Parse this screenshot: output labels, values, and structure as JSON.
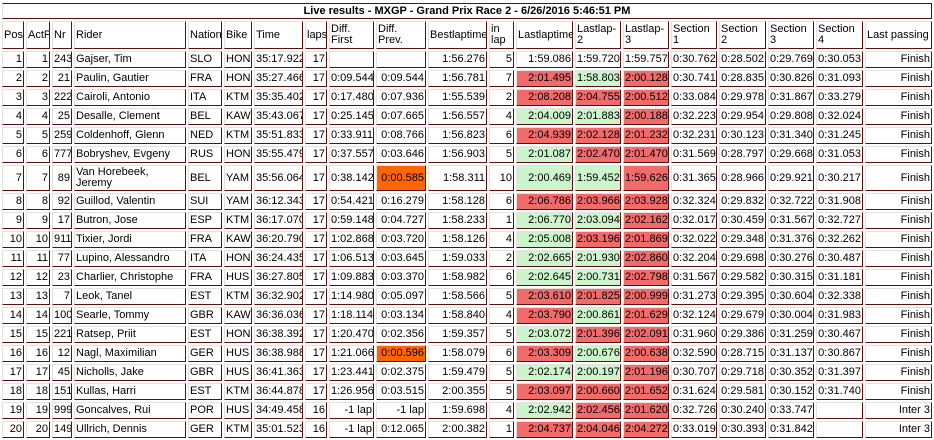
{
  "title": "Live results - MXGP - Grand Prix Race 2 - 6/26/2016 5:46:51 PM",
  "columns": [
    "Pos",
    "ActP",
    "Nr",
    "Rider",
    "Nation",
    "Bike",
    "Time",
    "laps",
    "Diff. First",
    "Diff. Prev.",
    "Bestlaptime",
    "in lap",
    "Lastlaptime",
    "Lastlap-2",
    "Lastlap-3",
    "Section 1",
    "Section 2",
    "Section 3",
    "Section 4",
    "Last passing"
  ],
  "colors": {
    "slower": "#f26b6b",
    "faster": "#ccf5cc",
    "gap_alert": "#ff6600"
  },
  "rows": [
    {
      "pos": "1",
      "actp": "1",
      "nr": "243",
      "rider": "Gajser, Tim",
      "nation": "SLO",
      "bike": "HON",
      "time": "35:17.922",
      "laps": "17",
      "diff_first": "",
      "diff_prev": "",
      "best": "1:56.276",
      "in_lap": "5",
      "last": "1:59.086",
      "last2": "1:59.720",
      "last3": "1:59.757",
      "s1": "0:30.762",
      "s2": "0:28.502",
      "s3": "0:29.769",
      "s4": "0:30.053",
      "passing": "Finish",
      "lap_colors": [
        "",
        "",
        ""
      ],
      "gap_alert": false
    },
    {
      "pos": "2",
      "actp": "2",
      "nr": "21",
      "rider": "Paulin, Gautier",
      "nation": "FRA",
      "bike": "HON",
      "time": "35:27.466",
      "laps": "17",
      "diff_first": "0:09.544",
      "diff_prev": "0:09.544",
      "best": "1:56.781",
      "in_lap": "7",
      "last": "2:01.495",
      "last2": "1:58.803",
      "last3": "2:00.128",
      "s1": "0:30.741",
      "s2": "0:28.835",
      "s3": "0:30.826",
      "s4": "0:31.093",
      "passing": "Finish",
      "lap_colors": [
        "r",
        "g",
        "r"
      ],
      "gap_alert": false
    },
    {
      "pos": "3",
      "actp": "3",
      "nr": "222",
      "rider": "Cairoli, Antonio",
      "nation": "ITA",
      "bike": "KTM",
      "time": "35:35.402",
      "laps": "17",
      "diff_first": "0:17.480",
      "diff_prev": "0:07.936",
      "best": "1:55.539",
      "in_lap": "2",
      "last": "2:08.208",
      "last2": "2:04.755",
      "last3": "2:00.512",
      "s1": "0:33.084",
      "s2": "0:29.978",
      "s3": "0:31.867",
      "s4": "0:33.279",
      "passing": "Finish",
      "lap_colors": [
        "r",
        "r",
        "r"
      ],
      "gap_alert": false
    },
    {
      "pos": "4",
      "actp": "4",
      "nr": "25",
      "rider": "Desalle, Clement",
      "nation": "BEL",
      "bike": "KAW",
      "time": "35:43.067",
      "laps": "17",
      "diff_first": "0:25.145",
      "diff_prev": "0:07.665",
      "best": "1:56.557",
      "in_lap": "4",
      "last": "2:04.009",
      "last2": "2:01.883",
      "last3": "2:00.188",
      "s1": "0:32.223",
      "s2": "0:29.954",
      "s3": "0:29.808",
      "s4": "0:32.024",
      "passing": "Finish",
      "lap_colors": [
        "g",
        "g",
        "r"
      ],
      "gap_alert": false
    },
    {
      "pos": "5",
      "actp": "5",
      "nr": "259",
      "rider": "Coldenhoff, Glenn",
      "nation": "NED",
      "bike": "KTM",
      "time": "35:51.833",
      "laps": "17",
      "diff_first": "0:33.911",
      "diff_prev": "0:08.766",
      "best": "1:56.823",
      "in_lap": "6",
      "last": "2:04.939",
      "last2": "2:02.128",
      "last3": "2:01.232",
      "s1": "0:32.231",
      "s2": "0:30.123",
      "s3": "0:31.340",
      "s4": "0:31.245",
      "passing": "Finish",
      "lap_colors": [
        "r",
        "r",
        "r"
      ],
      "gap_alert": false
    },
    {
      "pos": "6",
      "actp": "6",
      "nr": "777",
      "rider": "Bobryshev, Evgeny",
      "nation": "RUS",
      "bike": "HON",
      "time": "35:55.479",
      "laps": "17",
      "diff_first": "0:37.557",
      "diff_prev": "0:03.646",
      "best": "1:56.903",
      "in_lap": "5",
      "last": "2:01.087",
      "last2": "2:02.470",
      "last3": "2:01.470",
      "s1": "0:31.569",
      "s2": "0:28.797",
      "s3": "0:29.668",
      "s4": "0:31.053",
      "passing": "Finish",
      "lap_colors": [
        "g",
        "r",
        "r"
      ],
      "gap_alert": false
    },
    {
      "pos": "7",
      "actp": "7",
      "nr": "89",
      "rider": "Van Horebeek, Jeremy",
      "nation": "BEL",
      "bike": "YAM",
      "time": "35:56.064",
      "laps": "17",
      "diff_first": "0:38.142",
      "diff_prev": "0:00.585",
      "best": "1:58.311",
      "in_lap": "10",
      "last": "2:00.469",
      "last2": "1:59.452",
      "last3": "1:59.626",
      "s1": "0:31.365",
      "s2": "0:28.966",
      "s3": "0:29.921",
      "s4": "0:30.217",
      "passing": "Finish",
      "lap_colors": [
        "g",
        "g",
        "r"
      ],
      "gap_alert": true
    },
    {
      "pos": "8",
      "actp": "8",
      "nr": "92",
      "rider": "Guillod, Valentin",
      "nation": "SUI",
      "bike": "YAM",
      "time": "36:12.343",
      "laps": "17",
      "diff_first": "0:54.421",
      "diff_prev": "0:16.279",
      "best": "1:58.128",
      "in_lap": "6",
      "last": "2:06.786",
      "last2": "2:03.966",
      "last3": "2:03.928",
      "s1": "0:32.324",
      "s2": "0:29.832",
      "s3": "0:32.722",
      "s4": "0:31.908",
      "passing": "Finish",
      "lap_colors": [
        "r",
        "r",
        "r"
      ],
      "gap_alert": false
    },
    {
      "pos": "9",
      "actp": "9",
      "nr": "17",
      "rider": "Butron, Jose",
      "nation": "ESP",
      "bike": "KTM",
      "time": "36:17.070",
      "laps": "17",
      "diff_first": "0:59.148",
      "diff_prev": "0:04.727",
      "best": "1:58.233",
      "in_lap": "1",
      "last": "2:06.770",
      "last2": "2:03.094",
      "last3": "2:02.162",
      "s1": "0:32.017",
      "s2": "0:30.459",
      "s3": "0:31.567",
      "s4": "0:32.727",
      "passing": "Finish",
      "lap_colors": [
        "g",
        "g",
        "r"
      ],
      "gap_alert": false
    },
    {
      "pos": "10",
      "actp": "10",
      "nr": "911",
      "rider": "Tixier, Jordi",
      "nation": "FRA",
      "bike": "KAW",
      "time": "36:20.790",
      "laps": "17",
      "diff_first": "1:02.868",
      "diff_prev": "0:03.720",
      "best": "1:58.126",
      "in_lap": "4",
      "last": "2:05.008",
      "last2": "2:03.196",
      "last3": "2:01.869",
      "s1": "0:32.022",
      "s2": "0:29.348",
      "s3": "0:31.376",
      "s4": "0:32.262",
      "passing": "Finish",
      "lap_colors": [
        "g",
        "r",
        "r"
      ],
      "gap_alert": false
    },
    {
      "pos": "11",
      "actp": "11",
      "nr": "77",
      "rider": "Lupino, Alessandro",
      "nation": "ITA",
      "bike": "HON",
      "time": "36:24.435",
      "laps": "17",
      "diff_first": "1:06.513",
      "diff_prev": "0:03.645",
      "best": "1:59.033",
      "in_lap": "2",
      "last": "2:02.665",
      "last2": "2:01.930",
      "last3": "2:02.860",
      "s1": "0:32.204",
      "s2": "0:29.698",
      "s3": "0:30.276",
      "s4": "0:30.487",
      "passing": "Finish",
      "lap_colors": [
        "g",
        "g",
        "r"
      ],
      "gap_alert": false
    },
    {
      "pos": "12",
      "actp": "12",
      "nr": "23",
      "rider": "Charlier, Christophe",
      "nation": "FRA",
      "bike": "HUS",
      "time": "36:27.805",
      "laps": "17",
      "diff_first": "1:09.883",
      "diff_prev": "0:03.370",
      "best": "1:58.982",
      "in_lap": "6",
      "last": "2:02.645",
      "last2": "2:00.731",
      "last3": "2:02.798",
      "s1": "0:31.567",
      "s2": "0:29.582",
      "s3": "0:30.315",
      "s4": "0:31.181",
      "passing": "Finish",
      "lap_colors": [
        "g",
        "g",
        "r"
      ],
      "gap_alert": false
    },
    {
      "pos": "13",
      "actp": "13",
      "nr": "7",
      "rider": "Leok, Tanel",
      "nation": "EST",
      "bike": "KTM",
      "time": "36:32.902",
      "laps": "17",
      "diff_first": "1:14.980",
      "diff_prev": "0:05.097",
      "best": "1:58.566",
      "in_lap": "5",
      "last": "2:03.610",
      "last2": "2:01.825",
      "last3": "2:00.999",
      "s1": "0:31.273",
      "s2": "0:29.395",
      "s3": "0:30.604",
      "s4": "0:32.338",
      "passing": "Finish",
      "lap_colors": [
        "r",
        "r",
        "r"
      ],
      "gap_alert": false
    },
    {
      "pos": "14",
      "actp": "14",
      "nr": "100",
      "rider": "Searle, Tommy",
      "nation": "GBR",
      "bike": "KAW",
      "time": "36:36.036",
      "laps": "17",
      "diff_first": "1:18.114",
      "diff_prev": "0:03.134",
      "best": "1:58.840",
      "in_lap": "4",
      "last": "2:03.790",
      "last2": "2:00.861",
      "last3": "2:01.629",
      "s1": "0:32.124",
      "s2": "0:29.679",
      "s3": "0:30.004",
      "s4": "0:31.983",
      "passing": "Finish",
      "lap_colors": [
        "r",
        "g",
        "r"
      ],
      "gap_alert": false
    },
    {
      "pos": "15",
      "actp": "15",
      "nr": "221",
      "rider": "Ratsep, Priit",
      "nation": "EST",
      "bike": "HON",
      "time": "36:38.392",
      "laps": "17",
      "diff_first": "1:20.470",
      "diff_prev": "0:02.356",
      "best": "1:59.357",
      "in_lap": "5",
      "last": "2:03.072",
      "last2": "2:01.396",
      "last3": "2:02.091",
      "s1": "0:31.960",
      "s2": "0:29.386",
      "s3": "0:31.259",
      "s4": "0:30.467",
      "passing": "Finish",
      "lap_colors": [
        "g",
        "r",
        "r"
      ],
      "gap_alert": false
    },
    {
      "pos": "16",
      "actp": "16",
      "nr": "12",
      "rider": "Nagl, Maximilian",
      "nation": "GER",
      "bike": "HUS",
      "time": "36:38.988",
      "laps": "17",
      "diff_first": "1:21.066",
      "diff_prev": "0:00.596",
      "best": "1:58.079",
      "in_lap": "6",
      "last": "2:03.309",
      "last2": "2:00.676",
      "last3": "2:00.638",
      "s1": "0:32.590",
      "s2": "0:28.715",
      "s3": "0:31.137",
      "s4": "0:30.867",
      "passing": "Finish",
      "lap_colors": [
        "r",
        "g",
        "r"
      ],
      "gap_alert": true
    },
    {
      "pos": "17",
      "actp": "17",
      "nr": "45",
      "rider": "Nicholls, Jake",
      "nation": "GBR",
      "bike": "HUS",
      "time": "36:41.363",
      "laps": "17",
      "diff_first": "1:23.441",
      "diff_prev": "0:02.375",
      "best": "1:59.479",
      "in_lap": "5",
      "last": "2:02.174",
      "last2": "2:00.197",
      "last3": "2:01.196",
      "s1": "0:30.707",
      "s2": "0:29.718",
      "s3": "0:30.352",
      "s4": "0:31.397",
      "passing": "Finish",
      "lap_colors": [
        "g",
        "g",
        "r"
      ],
      "gap_alert": false
    },
    {
      "pos": "18",
      "actp": "18",
      "nr": "151",
      "rider": "Kullas, Harri",
      "nation": "EST",
      "bike": "KTM",
      "time": "36:44.878",
      "laps": "17",
      "diff_first": "1:26.956",
      "diff_prev": "0:03.515",
      "best": "2:00.355",
      "in_lap": "5",
      "last": "2:03.097",
      "last2": "2:00.660",
      "last3": "2:01.652",
      "s1": "0:31.624",
      "s2": "0:29.581",
      "s3": "0:30.152",
      "s4": "0:31.740",
      "passing": "Finish",
      "lap_colors": [
        "r",
        "r",
        "r"
      ],
      "gap_alert": false
    },
    {
      "pos": "19",
      "actp": "19",
      "nr": "999",
      "rider": "Goncalves, Rui",
      "nation": "POR",
      "bike": "HUS",
      "time": "34:49.458",
      "laps": "16",
      "diff_first": "-1 lap",
      "diff_prev": "-1 lap",
      "best": "1:59.698",
      "in_lap": "4",
      "last": "2:02.942",
      "last2": "2:02.456",
      "last3": "2:01.620",
      "s1": "0:32.726",
      "s2": "0:30.240",
      "s3": "0:33.747",
      "s4": "",
      "passing": "Inter 3",
      "lap_colors": [
        "g",
        "r",
        "r"
      ],
      "gap_alert": false
    },
    {
      "pos": "20",
      "actp": "20",
      "nr": "149",
      "rider": "Ullrich, Dennis",
      "nation": "GER",
      "bike": "KTM",
      "time": "35:01.523",
      "laps": "16",
      "diff_first": "-1 lap",
      "diff_prev": "0:12.065",
      "best": "2:00.382",
      "in_lap": "1",
      "last": "2:04.737",
      "last2": "2:04.046",
      "last3": "2:04.272",
      "s1": "0:33.019",
      "s2": "0:30.393",
      "s3": "0:31.842",
      "s4": "",
      "passing": "Inter 3",
      "lap_colors": [
        "r",
        "r",
        "r"
      ],
      "gap_alert": false
    }
  ]
}
